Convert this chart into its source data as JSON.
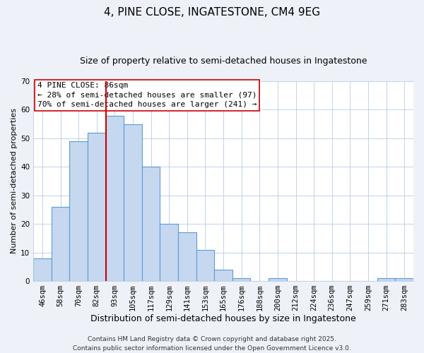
{
  "title": "4, PINE CLOSE, INGATESTONE, CM4 9EG",
  "subtitle": "Size of property relative to semi-detached houses in Ingatestone",
  "xlabel": "Distribution of semi-detached houses by size in Ingatestone",
  "ylabel": "Number of semi-detached properties",
  "bar_labels": [
    "46sqm",
    "58sqm",
    "70sqm",
    "82sqm",
    "93sqm",
    "105sqm",
    "117sqm",
    "129sqm",
    "141sqm",
    "153sqm",
    "165sqm",
    "176sqm",
    "188sqm",
    "200sqm",
    "212sqm",
    "224sqm",
    "236sqm",
    "247sqm",
    "259sqm",
    "271sqm",
    "283sqm"
  ],
  "bar_values": [
    8,
    26,
    49,
    52,
    58,
    55,
    40,
    20,
    17,
    11,
    4,
    1,
    0,
    1,
    0,
    0,
    0,
    0,
    0,
    1,
    1
  ],
  "bar_color": "#c5d8f0",
  "bar_edge_color": "#5b9bd5",
  "vline_x": 3.5,
  "vline_color": "#cc0000",
  "ylim": [
    0,
    70
  ],
  "yticks": [
    0,
    10,
    20,
    30,
    40,
    50,
    60,
    70
  ],
  "annotation_title": "4 PINE CLOSE: 86sqm",
  "annotation_line1": "← 28% of semi-detached houses are smaller (97)",
  "annotation_line2": "70% of semi-detached houses are larger (241) →",
  "footer1": "Contains HM Land Registry data © Crown copyright and database right 2025.",
  "footer2": "Contains public sector information licensed under the Open Government Licence v3.0.",
  "bg_color": "#eef2f8",
  "plot_bg_color": "#ffffff",
  "title_fontsize": 11,
  "subtitle_fontsize": 9,
  "xlabel_fontsize": 9,
  "ylabel_fontsize": 8,
  "tick_fontsize": 7.5,
  "annotation_fontsize": 8,
  "footer_fontsize": 6.5
}
